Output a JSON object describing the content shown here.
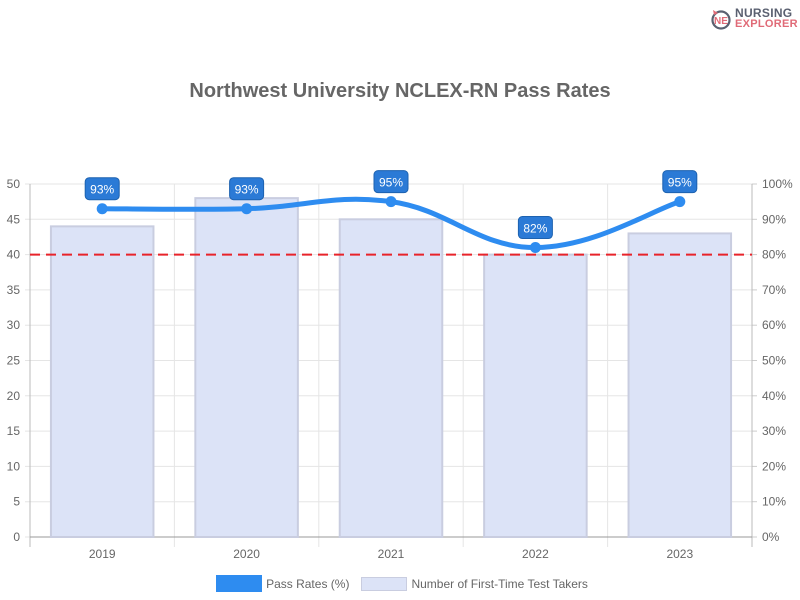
{
  "logo": {
    "line1": "NURSING",
    "line2": "EXPLORER"
  },
  "title": "Northwest University NCLEX-RN Pass Rates",
  "legend": {
    "line_label": "Pass Rates (%)",
    "bar_label": "Number of First-Time Test Takers"
  },
  "colors": {
    "line": "#2e8cf0",
    "bar_fill": "#dce3f7",
    "bar_border": "#c9cde0",
    "threshold": "#e8232a",
    "label_bg": "#2b7ad6"
  },
  "chart_data": {
    "type": "bar+line",
    "title": "Northwest University NCLEX-RN Pass Rates",
    "categories": [
      "2019",
      "2020",
      "2021",
      "2022",
      "2023"
    ],
    "series": [
      {
        "name": "Number of First-Time Test Takers",
        "type": "bar",
        "axis": "left",
        "values": [
          44,
          48,
          45,
          40,
          43
        ]
      },
      {
        "name": "Pass Rates (%)",
        "type": "line",
        "axis": "right",
        "values": [
          93,
          93,
          95,
          82,
          95
        ],
        "labels": [
          "93%",
          "93%",
          "95%",
          "82%",
          "95%"
        ]
      }
    ],
    "left_axis": {
      "ylim": [
        0,
        50
      ],
      "ticks": [
        0,
        5,
        10,
        15,
        20,
        25,
        30,
        35,
        40,
        45,
        50
      ]
    },
    "right_axis": {
      "ylim": [
        0,
        100
      ],
      "ticks": [
        "0%",
        "10%",
        "20%",
        "30%",
        "40%",
        "50%",
        "60%",
        "70%",
        "80%",
        "90%",
        "100%"
      ]
    },
    "threshold": {
      "value_percent": 80,
      "style": "dashed red"
    },
    "grid": true,
    "legend_position": "bottom"
  }
}
